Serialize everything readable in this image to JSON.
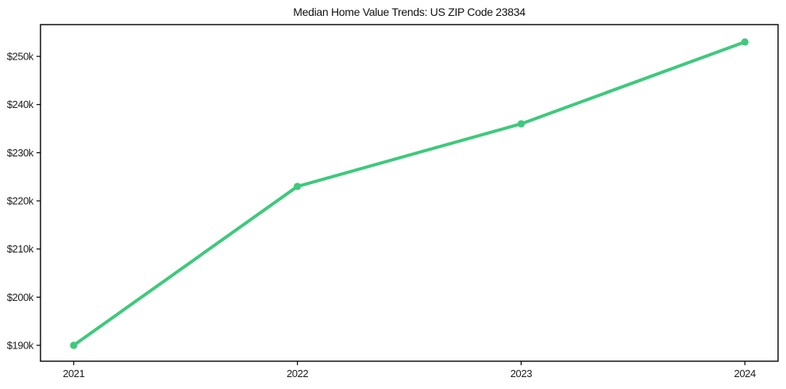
{
  "chart_data": {
    "type": "line",
    "title": "Median Home Value Trends: US ZIP Code 23834",
    "categories": [
      "2021",
      "2022",
      "2023",
      "2024"
    ],
    "values": [
      190000,
      223000,
      236000,
      253000
    ],
    "xlabel": "",
    "ylabel": "",
    "ylim": [
      186700,
      256600
    ],
    "y_ticks": [
      {
        "value": 190000,
        "label": "$190k"
      },
      {
        "value": 200000,
        "label": "$200k"
      },
      {
        "value": 210000,
        "label": "$210k"
      },
      {
        "value": 220000,
        "label": "$220k"
      },
      {
        "value": 230000,
        "label": "$230k"
      },
      {
        "value": 240000,
        "label": "$240k"
      },
      {
        "value": 250000,
        "label": "$250k"
      }
    ],
    "grid": false,
    "legend": false,
    "line_color": "#3ec97c",
    "marker": "circle",
    "spine_color": "#000000",
    "x_padding_frac": 0.045
  }
}
